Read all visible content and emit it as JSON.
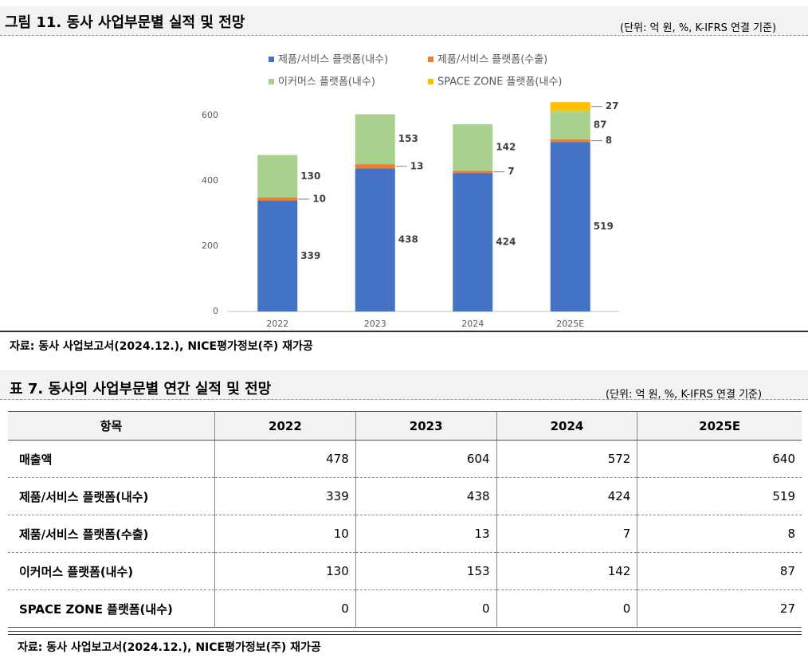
{
  "figure": {
    "title": "그림 11. 동사 사업부문별 실적 및 전망",
    "unit": "(단위: 억 원, %, K-IFRS 연결 기준)",
    "source": "자료: 동사 사업보고서(2024.12.), NICE평가정보(주) 재가공"
  },
  "chart_data": {
    "type": "stacked_bar",
    "categories": [
      "2022",
      "2023",
      "2024",
      "2025E"
    ],
    "series": [
      {
        "name": "제품/서비스 플랫폼(내수)",
        "color": "#4472c4",
        "values": [
          339,
          438,
          424,
          519
        ]
      },
      {
        "name": "제품/서비스 플랫폼(수출)",
        "color": "#ed7d31",
        "values": [
          10,
          13,
          7,
          8
        ]
      },
      {
        "name": "이커머스 플랫폼(내수)",
        "color": "#a9d18e",
        "values": [
          130,
          153,
          142,
          87
        ]
      },
      {
        "name": "SPACE ZONE 플랫폼(내수)",
        "color": "#ffc000",
        "values": [
          0,
          0,
          0,
          27
        ]
      }
    ],
    "ylim": [
      0,
      650
    ],
    "yticks": [
      0,
      200,
      400,
      600
    ],
    "grid": false,
    "legend": "top"
  },
  "table": {
    "title": "표 7. 동사의 사업부문별 연간 실적 및 전망",
    "unit": "(단위: 억 원, %, K-IFRS 연결 기준)",
    "header": [
      "항목",
      "2022",
      "2023",
      "2024",
      "2025E"
    ],
    "rows": [
      [
        "매출액",
        478,
        604,
        572,
        640
      ],
      [
        "제품/서비스 플랫폼(내수)",
        339,
        438,
        424,
        519
      ],
      [
        "제품/서비스 플랫폼(수출)",
        10,
        13,
        7,
        8
      ],
      [
        "이커머스 플랫폼(내수)",
        130,
        153,
        142,
        87
      ],
      [
        "SPACE ZONE 플랫폼(내수)",
        0,
        0,
        0,
        27
      ]
    ],
    "source": "자료: 동사 사업보고서(2024.12.), NICE평가정보(주) 재가공"
  }
}
